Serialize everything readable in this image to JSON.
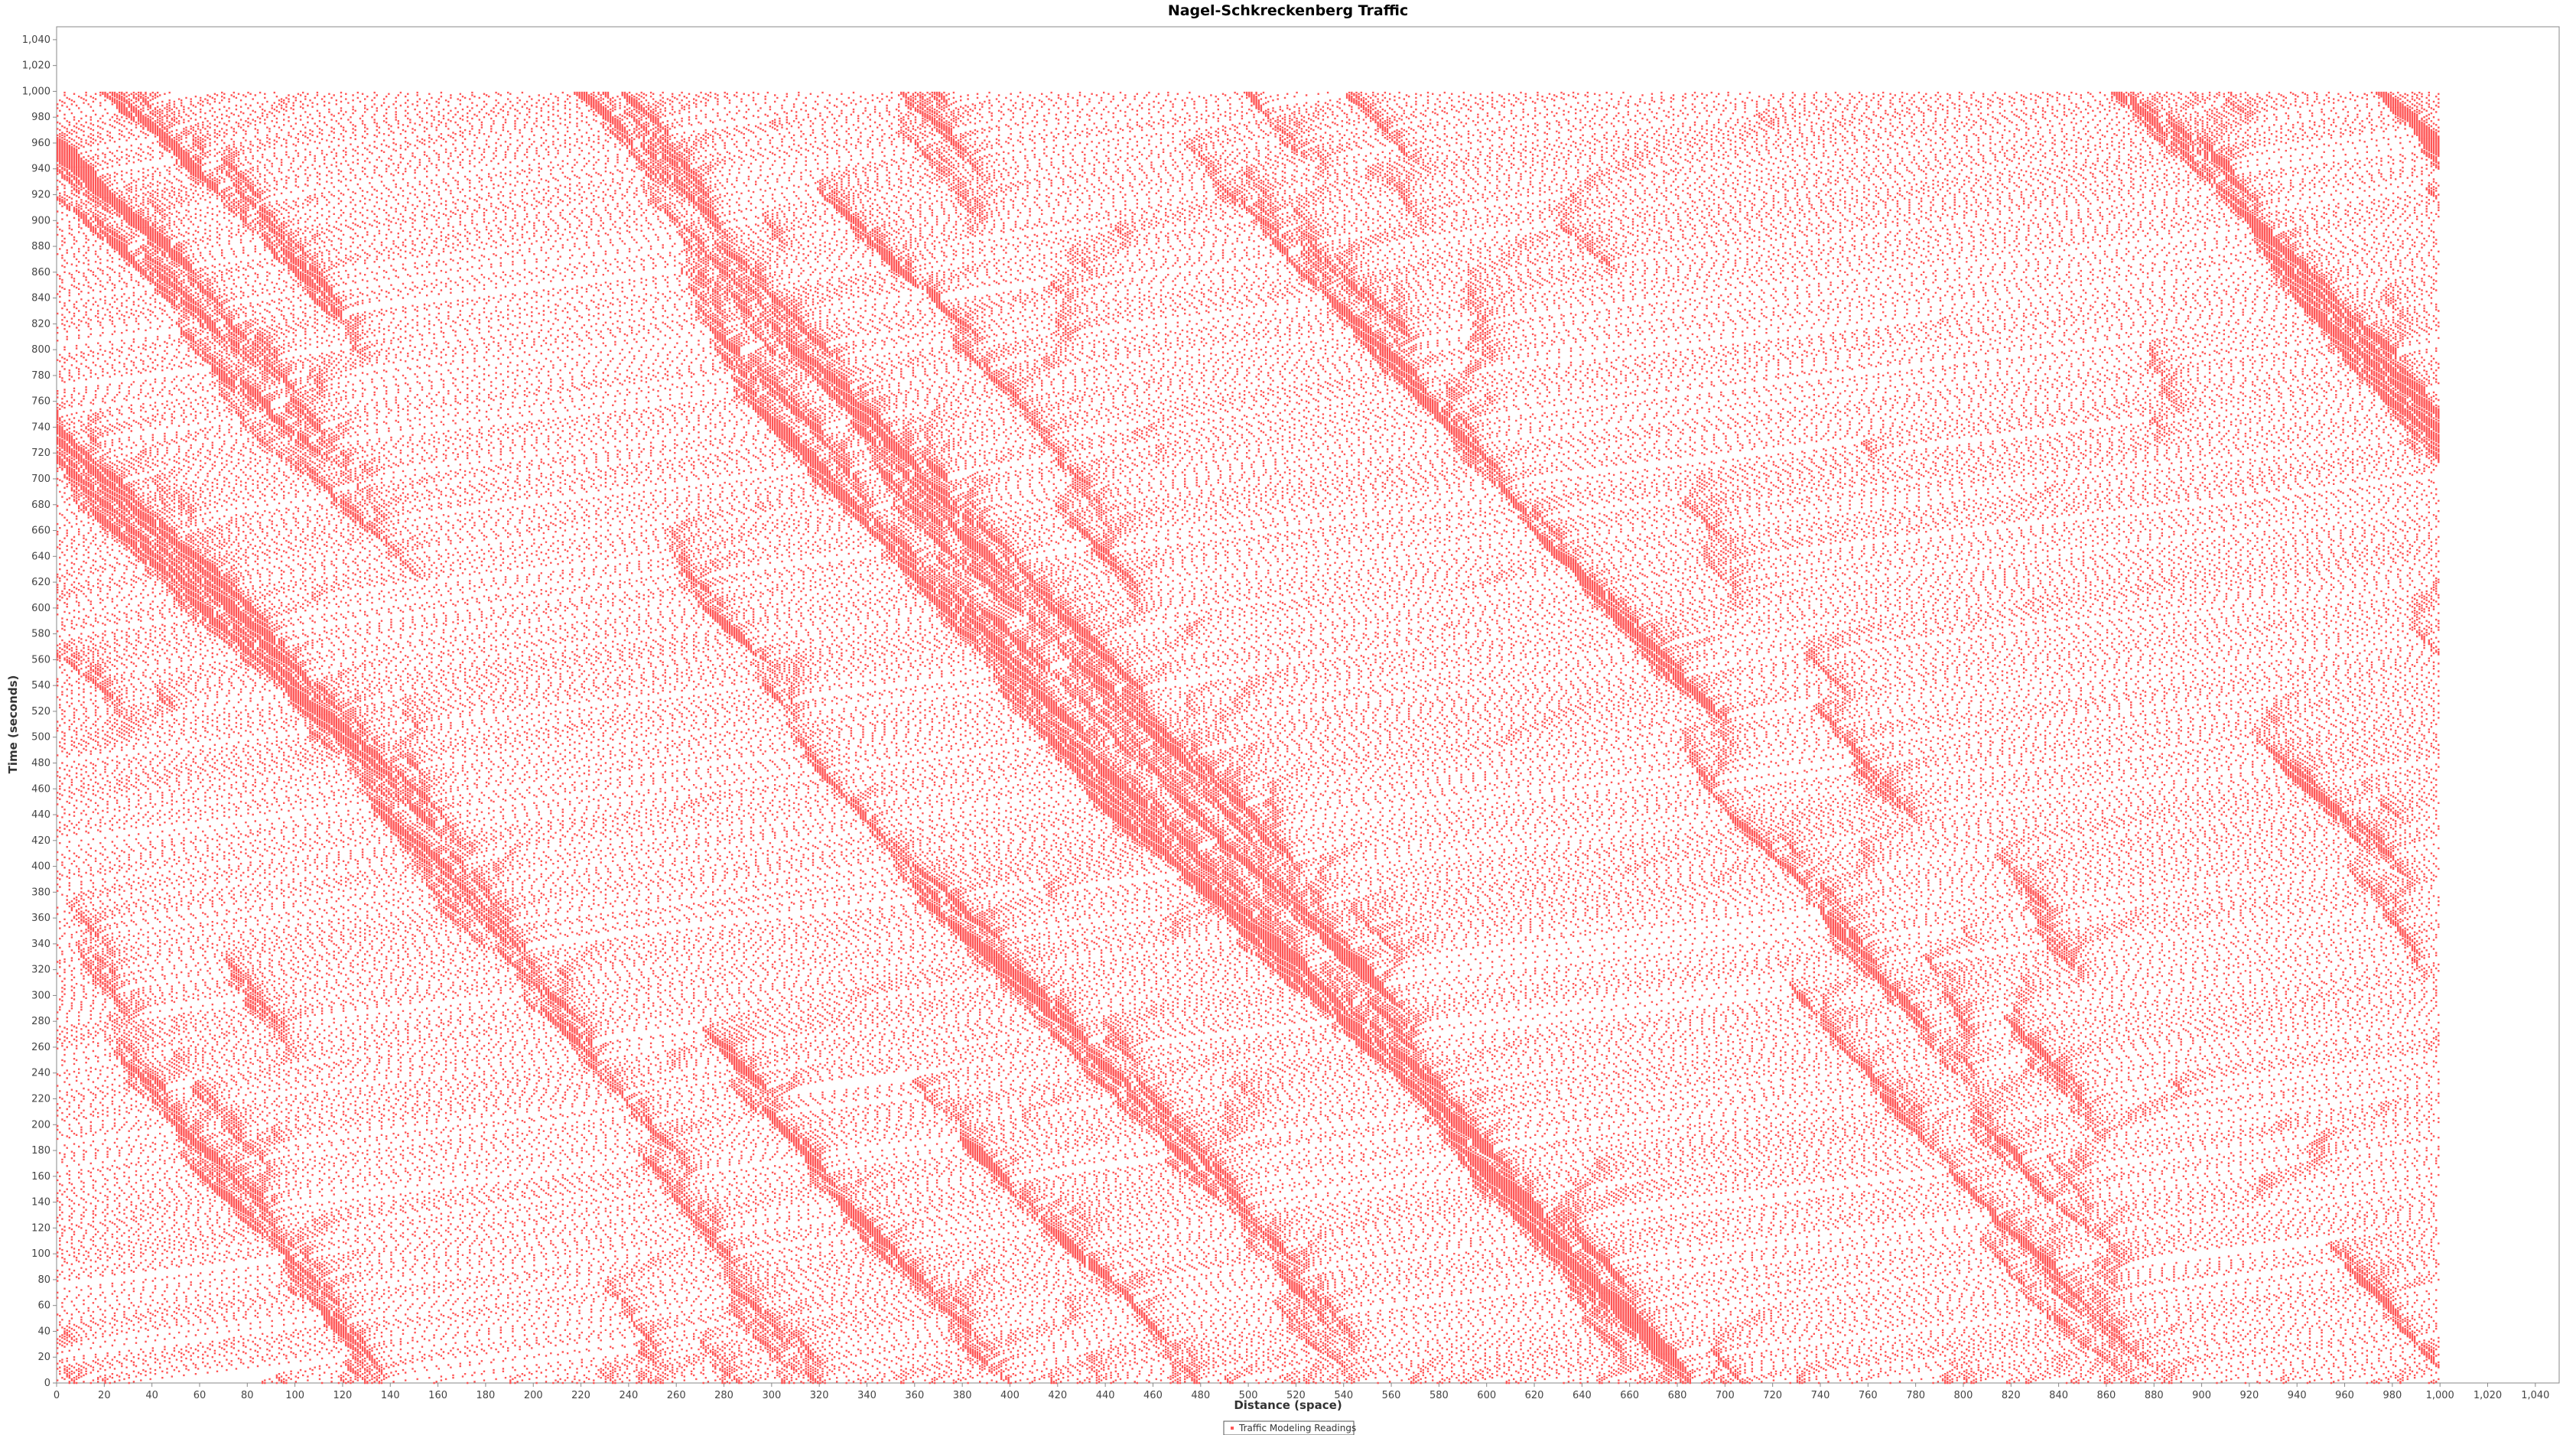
{
  "chart_data": {
    "type": "scatter",
    "title": "Nagel-Schkreckenberg Traffic",
    "xlabel": "Distance (space)",
    "ylabel": "Time (seconds)",
    "xlim": [
      0,
      1050
    ],
    "ylim": [
      0,
      1050
    ],
    "x_ticks": [
      0,
      20,
      40,
      60,
      80,
      100,
      120,
      140,
      160,
      180,
      200,
      220,
      240,
      260,
      280,
      300,
      320,
      340,
      360,
      380,
      400,
      420,
      440,
      460,
      480,
      500,
      520,
      540,
      560,
      580,
      600,
      620,
      640,
      660,
      680,
      700,
      720,
      740,
      760,
      780,
      800,
      820,
      840,
      860,
      880,
      900,
      920,
      940,
      960,
      980,
      1000,
      1020,
      1040
    ],
    "y_ticks": [
      0,
      20,
      40,
      60,
      80,
      100,
      120,
      140,
      160,
      180,
      200,
      220,
      240,
      260,
      280,
      300,
      320,
      340,
      360,
      380,
      400,
      420,
      440,
      460,
      480,
      500,
      520,
      540,
      560,
      580,
      600,
      620,
      640,
      660,
      680,
      700,
      720,
      740,
      760,
      780,
      800,
      820,
      840,
      860,
      880,
      900,
      920,
      940,
      960,
      980,
      1000,
      1020,
      1040
    ],
    "series": [
      {
        "name": "Traffic Modeling Readings",
        "color": "#ff5555",
        "road_length": 1000,
        "time_steps": 1000,
        "jams": [
          {
            "x": [
              820,
              1000
            ],
            "y": [
              0,
              840
            ]
          },
          {
            "x": [
              870,
              1000
            ],
            "y": [
              0,
              600
            ]
          },
          {
            "x": [
              245,
              290
            ],
            "y": [
              440,
              660
            ]
          },
          {
            "x": [
              0,
              30
            ],
            "y": [
              580,
              620
            ]
          },
          {
            "x": [
              0,
              50
            ],
            "y": [
              820,
              1000
            ]
          },
          {
            "x": [
              80,
              110
            ],
            "y": [
              700,
              790
            ]
          },
          {
            "x": [
              480,
              520
            ],
            "y": [
              800,
              1000
            ]
          },
          {
            "x": [
              680,
              710
            ],
            "y": [
              810,
              1000
            ]
          },
          {
            "x": [
              860,
              870
            ],
            "y": [
              950,
              1000
            ]
          },
          {
            "x": [
              120,
              135
            ],
            "y": [
              130,
              175
            ]
          }
        ]
      }
    ]
  }
}
